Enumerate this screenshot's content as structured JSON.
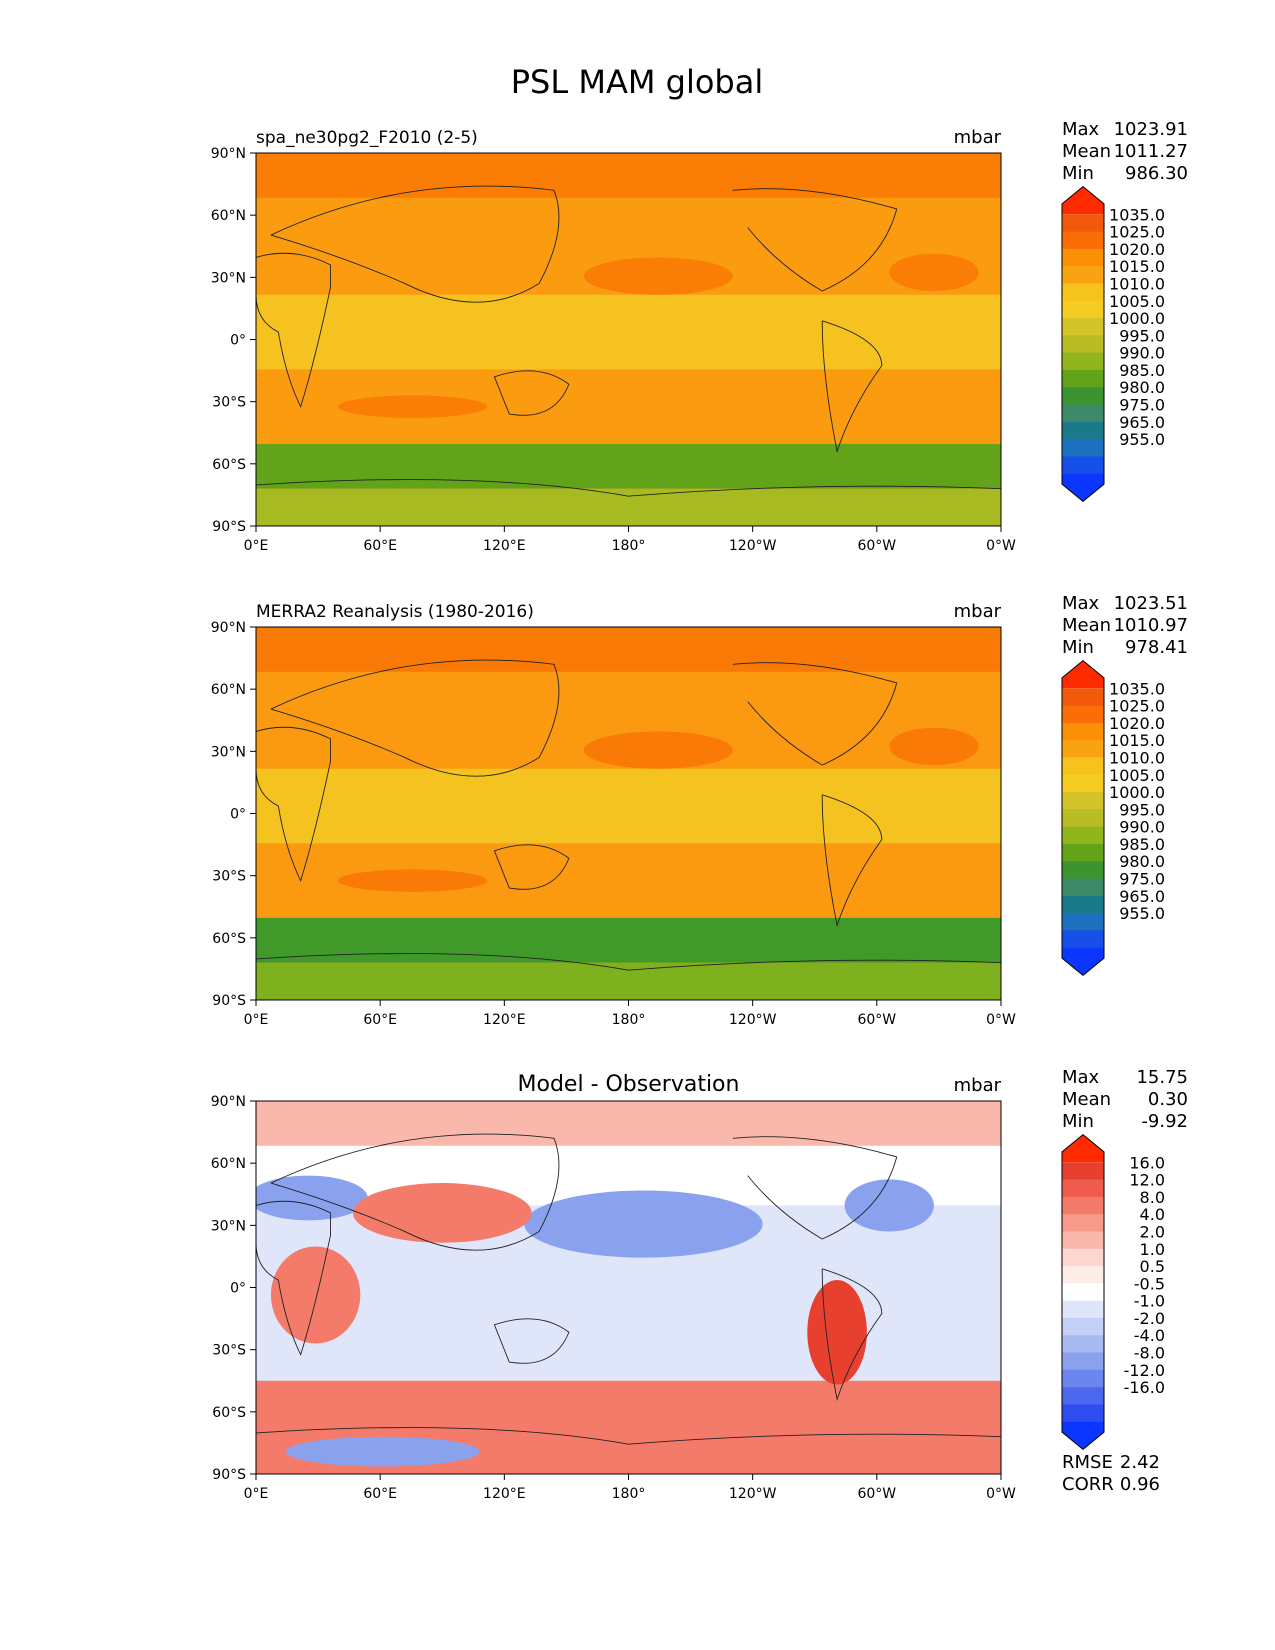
{
  "title": "PSL MAM global",
  "axes": {
    "lat_ticks": [
      "90°N",
      "60°N",
      "30°N",
      "0°",
      "30°S",
      "60°S",
      "90°S"
    ],
    "lon_ticks": [
      "0°E",
      "60°E",
      "120°E",
      "180°",
      "120°W",
      "60°W",
      "0°W"
    ]
  },
  "panels": [
    {
      "id": "model",
      "left_title": "spa_ne30pg2_F2010 (2-5)",
      "center_title": "",
      "units": "mbar",
      "stats": [
        {
          "label": "Max",
          "value": "1023.91"
        },
        {
          "label": "Mean",
          "value": "1011.27"
        },
        {
          "label": "Min",
          "value": "986.30"
        }
      ],
      "colorbar": {
        "ticks": [
          "1035.0",
          "1025.0",
          "1020.0",
          "1015.0",
          "1010.0",
          "1005.0",
          "1000.0",
          "995.0",
          "990.0",
          "985.0",
          "980.0",
          "975.0",
          "965.0",
          "955.0"
        ],
        "colors": [
          "#ff2a00",
          "#f05a0a",
          "#fa6e05",
          "#fb8f05",
          "#faa312",
          "#f6c21d",
          "#f5cc22",
          "#d3c42a",
          "#b9bc22",
          "#92b51d",
          "#62a319",
          "#3c9431",
          "#3d8a6a",
          "#1b7a8a",
          "#1e70c0",
          "#1650e8",
          "#0a36ff"
        ]
      },
      "extras": []
    },
    {
      "id": "obs",
      "left_title": "MERRA2 Reanalysis (1980-2016)",
      "center_title": "",
      "units": "mbar",
      "stats": [
        {
          "label": "Max",
          "value": "1023.51"
        },
        {
          "label": "Mean",
          "value": "1010.97"
        },
        {
          "label": "Min",
          "value": "978.41"
        }
      ],
      "colorbar": {
        "ticks": [
          "1035.0",
          "1025.0",
          "1020.0",
          "1015.0",
          "1010.0",
          "1005.0",
          "1000.0",
          "995.0",
          "990.0",
          "985.0",
          "980.0",
          "975.0",
          "965.0",
          "955.0"
        ],
        "colors": [
          "#ff2a00",
          "#f05a0a",
          "#fa6e05",
          "#fb8f05",
          "#faa312",
          "#f6c21d",
          "#f5cc22",
          "#d3c42a",
          "#b9bc22",
          "#92b51d",
          "#62a319",
          "#3c9431",
          "#3d8a6a",
          "#1b7a8a",
          "#1e70c0",
          "#1650e8",
          "#0a36ff"
        ]
      },
      "extras": []
    },
    {
      "id": "diff",
      "left_title": "",
      "center_title": "Model - Observation",
      "units": "mbar",
      "stats": [
        {
          "label": "Max",
          "value": "15.75"
        },
        {
          "label": "Mean",
          "value": "0.30"
        },
        {
          "label": "Min",
          "value": "-9.92"
        }
      ],
      "colorbar": {
        "ticks": [
          "16.0",
          "12.0",
          "8.0",
          "4.0",
          "2.0",
          "1.0",
          "0.5",
          "-0.5",
          "-1.0",
          "-2.0",
          "-4.0",
          "-8.0",
          "-12.0",
          "-16.0"
        ],
        "colors": [
          "#ff2a00",
          "#e8402f",
          "#ef5c4c",
          "#f47a6a",
          "#f79a8c",
          "#fab8ad",
          "#fcd6cf",
          "#fdece8",
          "#ffffff",
          "#dfe6fa",
          "#c3d0f5",
          "#a7baf2",
          "#8aa2ee",
          "#6b86ec",
          "#4c68ee",
          "#2f4cf0",
          "#0a36ff"
        ]
      },
      "extras": [
        {
          "label": "RMSE",
          "value": "2.42"
        },
        {
          "label": "CORR",
          "value": "0.96"
        }
      ]
    }
  ],
  "field_colors": {
    "model": {
      "high": "#fa7d05",
      "mid": "#fb9c10",
      "tropic": "#f6c220",
      "south": "#62a319",
      "ant": "#a8ba22"
    },
    "obs": {
      "high": "#f97a06",
      "mid": "#fb9a10",
      "tropic": "#f5c31f",
      "south": "#3f9a2a",
      "ant": "#7fb01d"
    },
    "diff": {
      "pos": "#f47a6a",
      "pos_light": "#fab8ad",
      "neg": "#8aa2ee",
      "neg_light": "#dfe6fa",
      "strong_pos": "#e8402f",
      "strong_neg": "#4c68ee"
    }
  }
}
